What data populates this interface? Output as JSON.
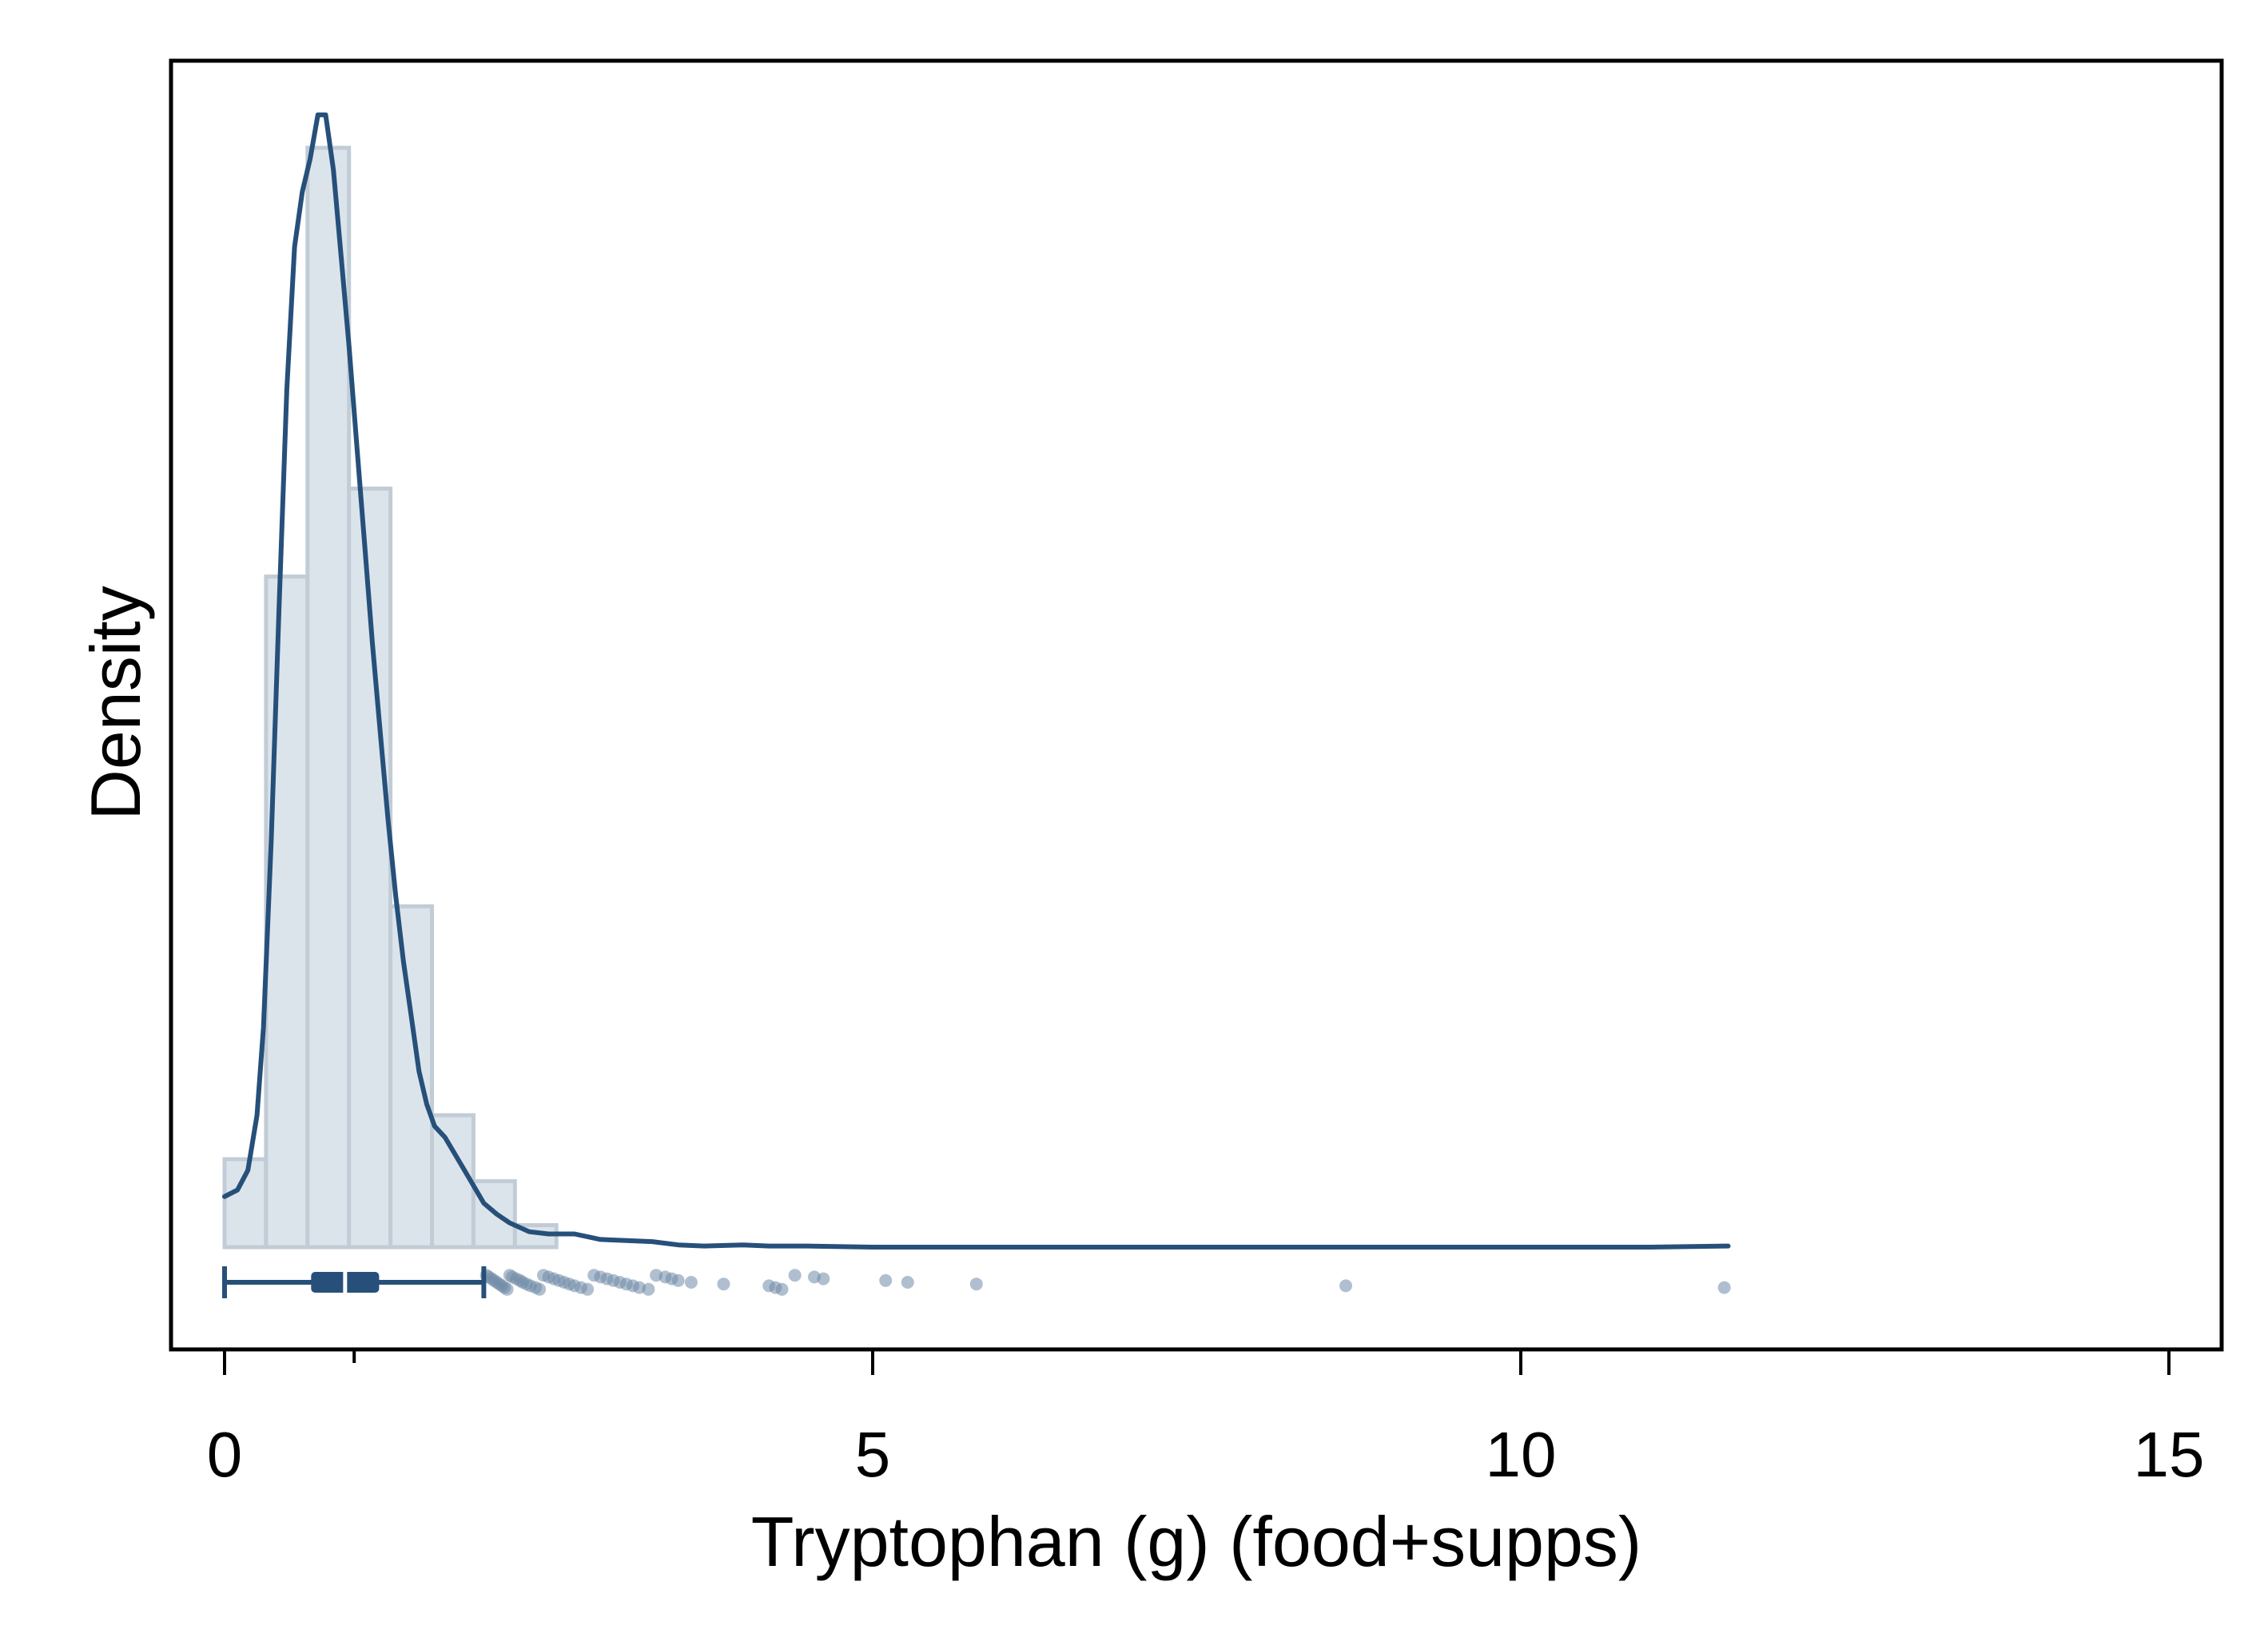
{
  "chart_data": {
    "type": "histogram",
    "xlabel": "Tryptophan (g) (food+supps)",
    "ylabel": "Density",
    "xlim": [
      -0.4,
      15.4
    ],
    "xticks": [
      0,
      5,
      10,
      15
    ],
    "grid": false,
    "colors": {
      "bar_fill": "#dce4eb",
      "bar_edge": "#c2ccd6",
      "line": "#26507a",
      "outlier": "#6f8aa8"
    },
    "histogram": {
      "bin_edges": [
        0,
        0.32,
        0.64,
        0.96,
        1.28,
        1.6,
        1.92,
        2.24,
        2.56
      ],
      "heights": [
        0.08,
        0.61,
        1.0,
        0.69,
        0.31,
        0.12,
        0.06,
        0.02
      ]
    },
    "density_curve": {
      "x": [
        0,
        0.1,
        0.18,
        0.25,
        0.3,
        0.36,
        0.42,
        0.48,
        0.54,
        0.6,
        0.66,
        0.72,
        0.78,
        0.84,
        0.9,
        0.96,
        1.02,
        1.08,
        1.14,
        1.2,
        1.26,
        1.32,
        1.38,
        1.44,
        1.5,
        1.56,
        1.62,
        1.7,
        1.8,
        1.9,
        2.0,
        2.1,
        2.2,
        2.35,
        2.5,
        2.7,
        2.9,
        3.1,
        3.3,
        3.5,
        3.7,
        4.0,
        4.2,
        4.5,
        5.0,
        5.5,
        6.0,
        7.0,
        8.0,
        9.0,
        10.0,
        11.0,
        11.6
      ],
      "y": [
        0.046,
        0.052,
        0.07,
        0.12,
        0.2,
        0.37,
        0.58,
        0.78,
        0.91,
        0.96,
        0.99,
        1.03,
        1.03,
        0.98,
        0.9,
        0.82,
        0.73,
        0.64,
        0.55,
        0.47,
        0.39,
        0.32,
        0.26,
        0.21,
        0.16,
        0.13,
        0.11,
        0.1,
        0.08,
        0.06,
        0.04,
        0.03,
        0.022,
        0.014,
        0.012,
        0.012,
        0.007,
        0.006,
        0.005,
        0.002,
        0.001,
        0.002,
        0.001,
        0.001,
        0.0,
        0.0,
        0.0,
        0.0,
        0.0,
        0.0,
        0.0,
        0.0,
        0.001
      ]
    },
    "boxplot": {
      "lower_whisker": 0.0,
      "q1": 0.68,
      "median": 0.93,
      "q3": 1.18,
      "upper_whisker": 2.0,
      "outliers": [
        2.02,
        2.04,
        2.06,
        2.08,
        2.1,
        2.12,
        2.14,
        2.16,
        2.18,
        2.2,
        2.22,
        2.25,
        2.28,
        2.3,
        2.33,
        2.36,
        2.4,
        2.43,
        2.46,
        2.5,
        2.54,
        2.58,
        2.62,
        2.66,
        2.7,
        2.75,
        2.8,
        2.85,
        2.9,
        2.95,
        3.0,
        3.05,
        3.1,
        3.15,
        3.2,
        3.27,
        3.33,
        3.4,
        3.45,
        3.5,
        3.6,
        3.85,
        4.2,
        4.25,
        4.3,
        4.4,
        4.55,
        4.62,
        5.1,
        5.27,
        5.8,
        8.65,
        11.57
      ]
    }
  }
}
